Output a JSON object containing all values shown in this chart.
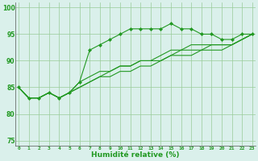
{
  "xlabel": "Humidité relative (%)",
  "background_color": "#daf0eb",
  "line_color": "#229922",
  "grid_color": "#99cc99",
  "ylim": [
    74,
    101
  ],
  "xlim": [
    -0.3,
    23.3
  ],
  "yticks": [
    75,
    80,
    85,
    90,
    95,
    100
  ],
  "xticks": [
    0,
    1,
    2,
    3,
    4,
    5,
    6,
    7,
    8,
    9,
    10,
    11,
    12,
    13,
    14,
    15,
    16,
    17,
    18,
    19,
    20,
    21,
    22,
    23
  ],
  "series1": [
    85,
    83,
    83,
    84,
    83,
    84,
    86,
    92,
    93,
    94,
    95,
    96,
    96,
    96,
    96,
    97,
    96,
    96,
    95,
    95,
    94,
    94,
    95,
    95
  ],
  "series2": [
    85,
    83,
    83,
    84,
    83,
    84,
    86,
    87,
    88,
    88,
    89,
    89,
    90,
    90,
    91,
    92,
    92,
    93,
    93,
    93,
    93,
    93,
    94,
    95
  ],
  "series3": [
    85,
    83,
    83,
    84,
    83,
    84,
    85,
    86,
    87,
    88,
    89,
    89,
    90,
    90,
    90,
    91,
    92,
    92,
    92,
    93,
    93,
    93,
    94,
    95
  ],
  "series4": [
    85,
    83,
    83,
    84,
    83,
    84,
    85,
    86,
    87,
    87,
    88,
    88,
    89,
    89,
    90,
    91,
    91,
    91,
    92,
    92,
    92,
    93,
    94,
    95
  ]
}
